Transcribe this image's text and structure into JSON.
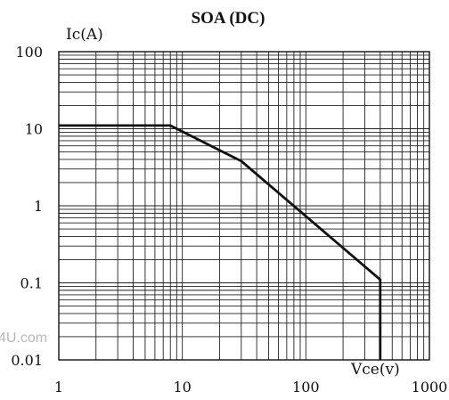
{
  "chart_data": {
    "type": "line",
    "title": "SOA (DC)",
    "xlabel": "Vce(v)",
    "ylabel": "Ic(A)",
    "x_scale": "log",
    "y_scale": "log",
    "xlim": [
      1,
      1000
    ],
    "ylim": [
      0.01,
      100
    ],
    "grid": true,
    "x_ticks": [
      "1",
      "10",
      "100",
      "1000"
    ],
    "y_ticks": [
      "100",
      "10",
      "1",
      "0.1",
      "0.01"
    ],
    "series": [
      {
        "x": [
          1,
          8,
          30,
          400,
          400
        ],
        "y": [
          11,
          11,
          3.8,
          0.11,
          0.01
        ]
      }
    ]
  },
  "watermark": "4U.com"
}
